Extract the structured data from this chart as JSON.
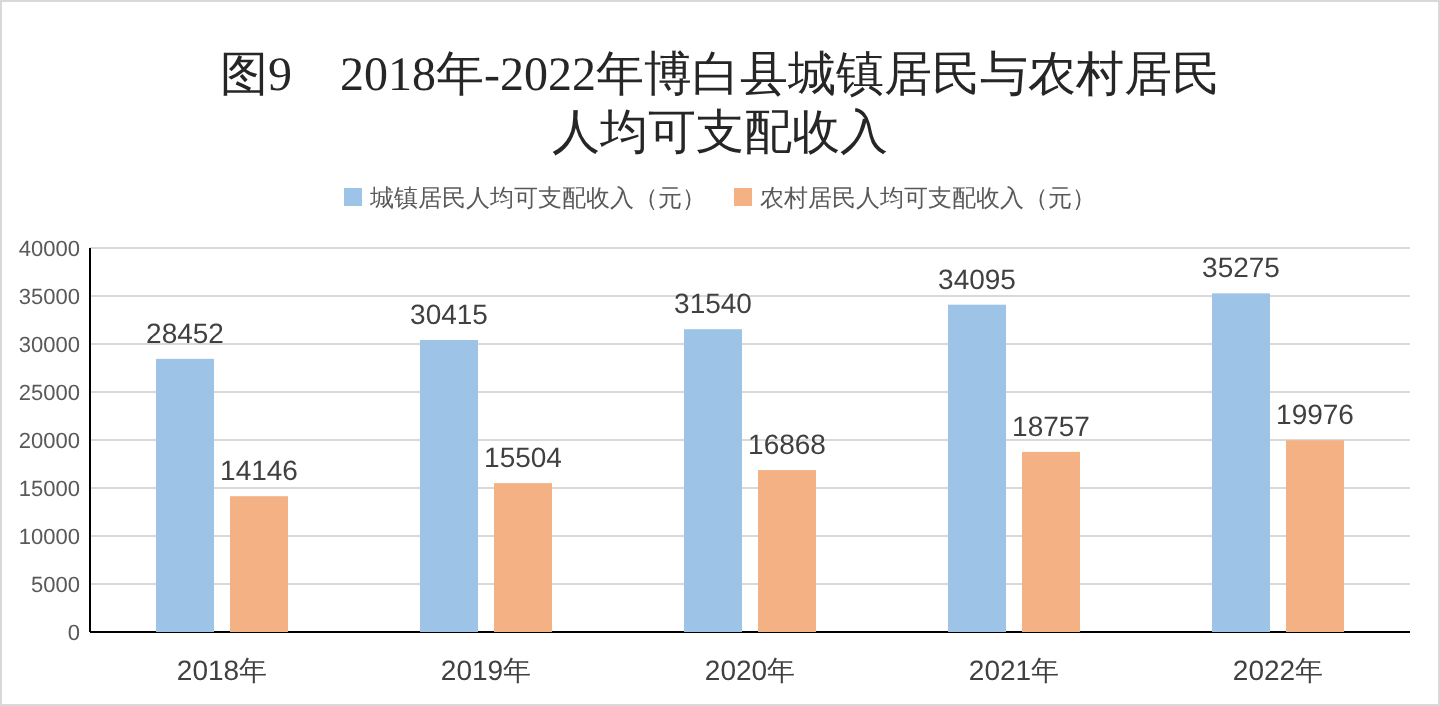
{
  "chart_data": {
    "type": "bar",
    "title": "图9　2018年-2022年博白县城镇居民与农村居民人均可支配收入",
    "categories": [
      "2018年",
      "2019年",
      "2020年",
      "2021年",
      "2022年"
    ],
    "series": [
      {
        "name": "城镇居民人均可支配收入（元）",
        "color": "#9dc3e6",
        "values": [
          28452,
          30415,
          31540,
          34095,
          35275
        ]
      },
      {
        "name": "农村居民人均可支配收入（元）",
        "color": "#f4b183",
        "values": [
          14146,
          15504,
          16868,
          18757,
          19976
        ]
      }
    ],
    "ylim": [
      0,
      40000
    ],
    "yticks": [
      0,
      5000,
      10000,
      15000,
      20000,
      25000,
      30000,
      35000,
      40000
    ],
    "grid": "y",
    "legend": "top",
    "data_labels": true
  }
}
